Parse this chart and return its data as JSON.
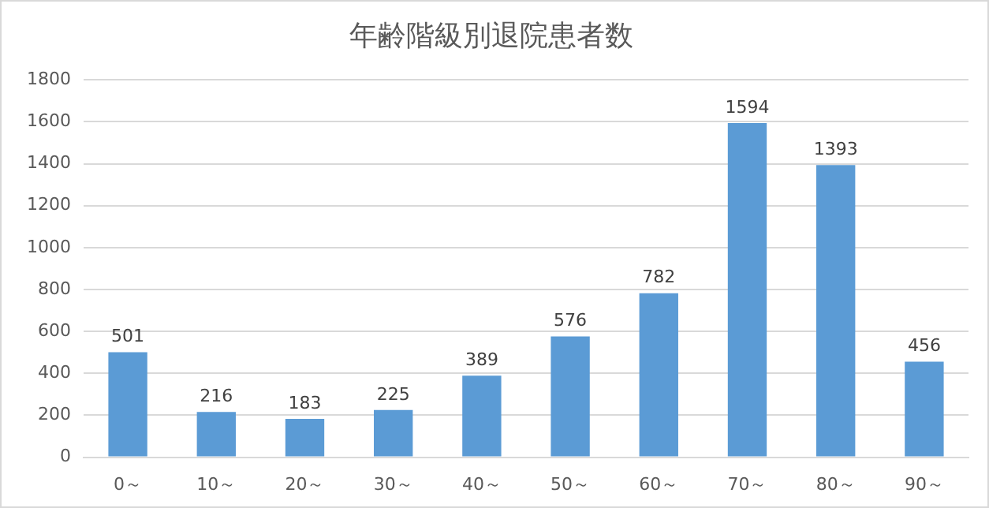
{
  "chart_data": {
    "type": "bar",
    "title": "年齢階級別退院患者数",
    "categories": [
      "0～",
      "10～",
      "20～",
      "30～",
      "40～",
      "50～",
      "60～",
      "70～",
      "80～",
      "90～"
    ],
    "values": [
      501,
      216,
      183,
      225,
      389,
      576,
      782,
      1594,
      1393,
      456
    ],
    "color": "#5b9bd5",
    "ylim": [
      0,
      1800
    ],
    "yticks": [
      0,
      200,
      400,
      600,
      800,
      1000,
      1200,
      1400,
      1600,
      1800
    ],
    "grid": "y",
    "legend": false,
    "data_labels": true
  }
}
